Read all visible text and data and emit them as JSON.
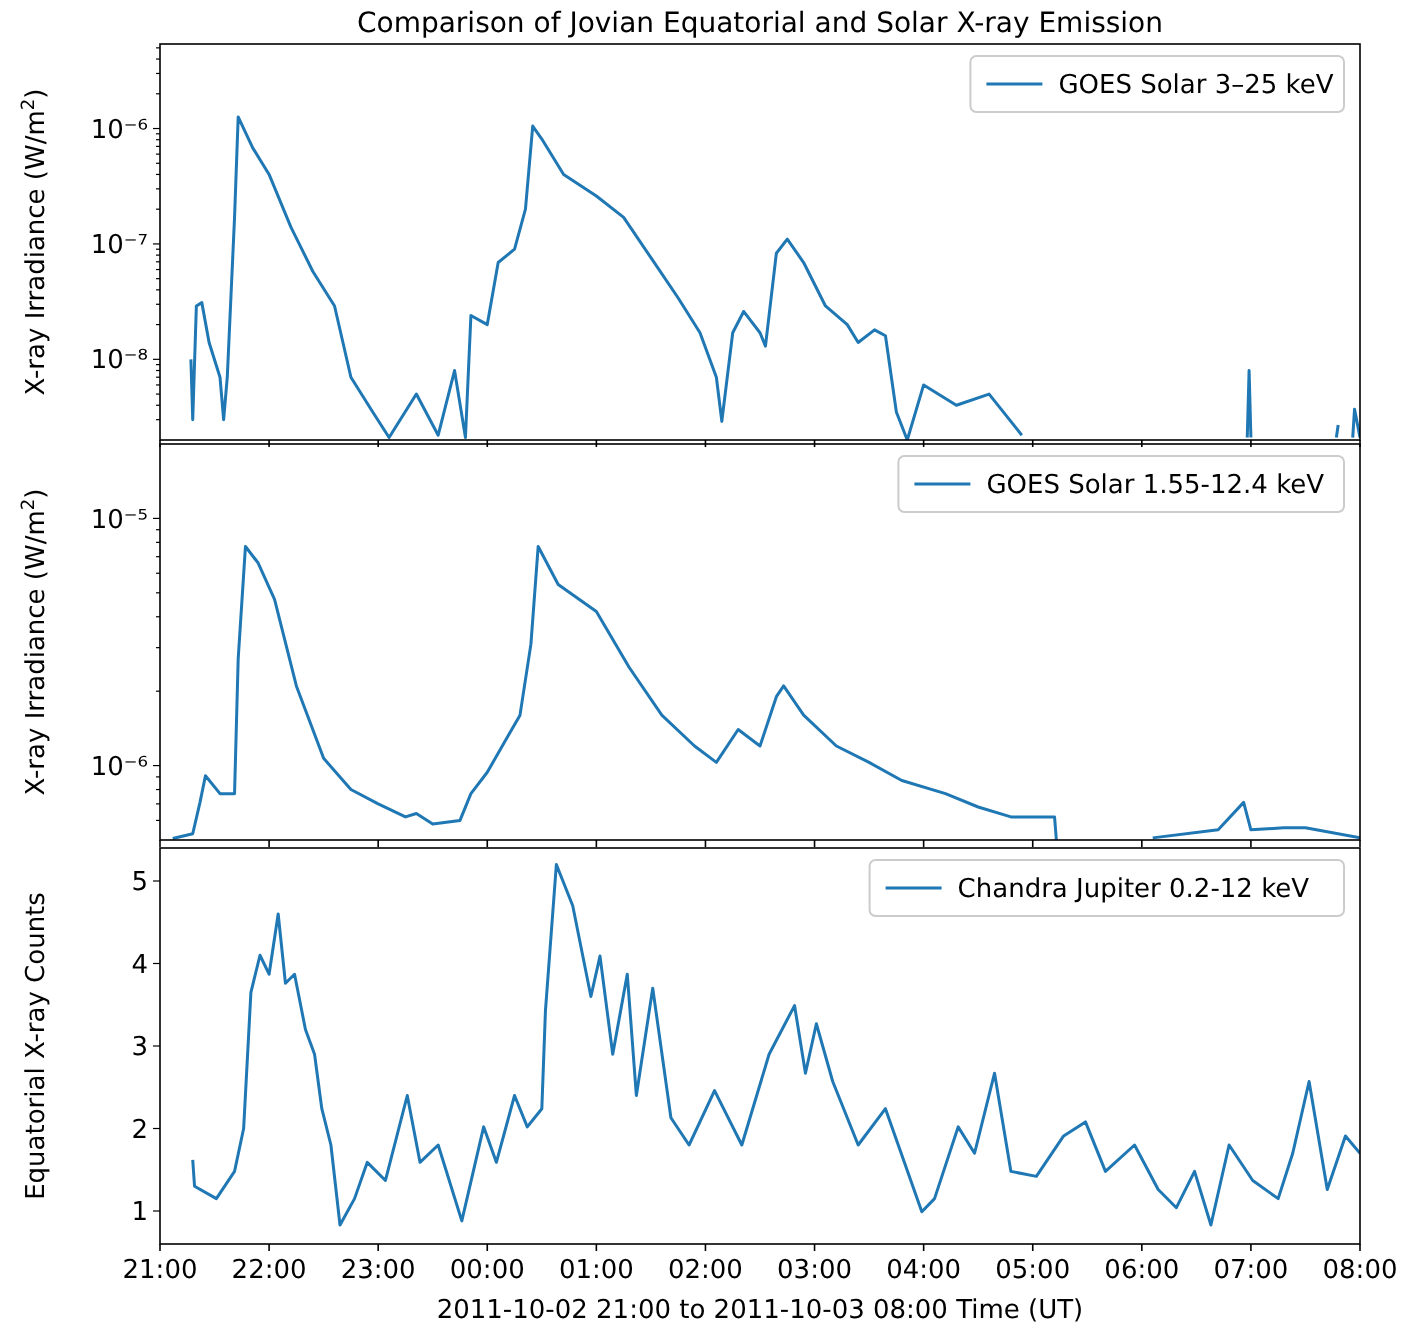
{
  "chart_data": [
    {
      "type": "line",
      "title": "Comparison of Jovian Equatorial and Solar X-ray Emission",
      "ylabel": "X-ray Irradiance (W/m$^{2}$)",
      "log": "y",
      "legend": "top right",
      "tick_labels": "y",
      "xlim": [
        "2011-10-02T21:00",
        "2011-10-03T08:00"
      ],
      "xticks": [
        {
          "value": "2011-10-02T21:00",
          "label": null
        },
        {
          "value": "2011-10-02T22:00",
          "label": null
        },
        {
          "value": "2011-10-02T23:00",
          "label": null
        },
        {
          "value": "2011-10-03T00:00",
          "label": null
        },
        {
          "value": "2011-10-03T01:00",
          "label": null
        },
        {
          "value": "2011-10-03T02:00",
          "label": null
        },
        {
          "value": "2011-10-03T03:00",
          "label": null
        },
        {
          "value": "2011-10-03T04:00",
          "label": null
        },
        {
          "value": "2011-10-03T05:00",
          "label": null
        },
        {
          "value": "2011-10-03T06:00",
          "label": null
        },
        {
          "value": "2011-10-03T07:00",
          "label": null
        },
        {
          "value": "2011-10-03T08:00",
          "label": null
        }
      ],
      "ylim": [
        2e-09,
        5.4e-06
      ],
      "yticks": [
        {
          "value": 1e-08,
          "label": "10⁻⁸"
        },
        {
          "value": 1e-07,
          "label": "10⁻⁷"
        },
        {
          "value": 1e-06,
          "label": "10⁻⁶"
        },
        {
          "value": 3e-09,
          "label": null
        },
        {
          "value": 4e-09,
          "label": null
        },
        {
          "value": 5e-09,
          "label": null
        },
        {
          "value": 6e-09,
          "label": null
        },
        {
          "value": 7e-09,
          "label": null
        },
        {
          "value": 8e-09,
          "label": null
        },
        {
          "value": 9e-09,
          "label": null
        },
        {
          "value": 2e-08,
          "label": null
        },
        {
          "value": 3e-08,
          "label": null
        },
        {
          "value": 4e-08,
          "label": null
        },
        {
          "value": 5e-08,
          "label": null
        },
        {
          "value": 6e-08,
          "label": null
        },
        {
          "value": 7e-08,
          "label": null
        },
        {
          "value": 8e-08,
          "label": null
        },
        {
          "value": 9e-08,
          "label": null
        },
        {
          "value": 2e-07,
          "label": null
        },
        {
          "value": 3e-07,
          "label": null
        },
        {
          "value": 4e-07,
          "label": null
        },
        {
          "value": 5e-07,
          "label": null
        },
        {
          "value": 6e-07,
          "label": null
        },
        {
          "value": 7e-07,
          "label": null
        },
        {
          "value": 8e-07,
          "label": null
        },
        {
          "value": 9e-07,
          "label": null
        },
        {
          "value": 2e-06,
          "label": null
        },
        {
          "value": 3e-06,
          "label": null
        },
        {
          "value": 4e-06,
          "label": null
        },
        {
          "value": 5e-06,
          "label": null
        }
      ],
      "series": [
        {
          "name": "GOES Solar 3–25 keV",
          "color": "#1f77b4",
          "x": [
            "2011-10-02T21:17",
            "2011-10-02T21:18",
            "2011-10-02T21:20",
            "2011-10-02T21:23",
            "2011-10-02T21:27",
            "2011-10-02T21:33",
            "2011-10-02T21:35",
            "2011-10-02T21:37",
            "2011-10-02T21:41",
            "2011-10-02T21:43",
            "2011-10-02T21:51",
            "2011-10-02T22:00",
            "2011-10-02T22:12",
            "2011-10-02T22:24",
            "2011-10-02T22:36",
            "2011-10-02T22:45",
            "2011-10-02T22:57",
            "2011-10-02T23:06",
            "2011-10-02T23:21",
            "2011-10-02T23:33",
            "2011-10-02T23:42",
            "2011-10-02T23:48",
            "2011-10-02T23:51",
            "2011-10-03T00:00",
            "2011-10-03T00:06",
            "2011-10-03T00:15",
            "2011-10-03T00:21",
            "2011-10-03T00:25",
            "2011-10-03T00:30",
            "2011-10-03T00:42",
            "2011-10-03T01:00",
            "2011-10-03T01:15",
            "2011-10-03T01:30",
            "2011-10-03T01:45",
            "2011-10-03T01:57",
            "2011-10-03T02:06",
            "2011-10-03T02:09",
            "2011-10-03T02:15",
            "2011-10-03T02:21",
            "2011-10-03T02:30",
            "2011-10-03T02:33",
            "2011-10-03T02:39",
            "2011-10-03T02:45",
            "2011-10-03T02:54",
            "2011-10-03T03:06",
            "2011-10-03T03:18",
            "2011-10-03T03:24",
            "2011-10-03T03:33",
            "2011-10-03T03:39",
            "2011-10-03T03:45",
            "2011-10-03T03:51",
            "2011-10-03T04:00",
            "2011-10-03T04:18",
            "2011-10-03T04:36",
            "2011-10-03T04:54",
            "2011-10-03T05:00",
            "2011-10-03T06:58",
            "2011-10-03T06:59",
            "2011-10-03T07:00",
            "2011-10-03T07:10",
            "2011-10-03T07:47",
            "2011-10-03T07:48",
            "2011-10-03T07:50",
            "2011-10-03T07:56",
            "2011-10-03T07:57",
            "2011-10-03T08:00"
          ],
          "values": [
            1e-08,
            3e-09,
            2.9e-08,
            3.1e-08,
            1.4e-08,
            7e-09,
            3e-09,
            7e-09,
            1.7e-07,
            1.26e-06,
            6.8e-07,
            4e-07,
            1.4e-07,
            5.8e-08,
            2.9e-08,
            7e-09,
            3.5e-09,
            2.1e-09,
            5e-09,
            2.2e-09,
            8e-09,
            2.1e-09,
            2.4e-08,
            2e-08,
            6.9e-08,
            9e-08,
            2e-07,
            1.05e-06,
            8.1e-07,
            4e-07,
            2.6e-07,
            1.7e-07,
            7.6e-08,
            3.4e-08,
            1.7e-08,
            7e-09,
            2.9e-09,
            1.7e-08,
            2.6e-08,
            1.7e-08,
            1.3e-08,
            8.3e-08,
            1.1e-07,
            6.9e-08,
            2.9e-08,
            2e-08,
            1.4e-08,
            1.8e-08,
            1.6e-08,
            3.5e-09,
            2e-09,
            6e-09,
            4e-09,
            5e-09,
            2.2e-09,
            null,
            2.1e-09,
            8e-09,
            2.1e-09,
            null,
            2.1e-09,
            2.7e-09,
            null,
            2.1e-09,
            3.7e-09,
            2.1e-09
          ]
        }
      ]
    },
    {
      "type": "line",
      "ylabel": "X-ray Irradiance (W/m$^{2}$)",
      "log": "y",
      "legend": "top right",
      "tick_labels": "y",
      "xlim": [
        "2011-10-02T21:00",
        "2011-10-03T08:00"
      ],
      "xticks": [
        {
          "value": "2011-10-02T21:00",
          "label": null
        },
        {
          "value": "2011-10-02T22:00",
          "label": null
        },
        {
          "value": "2011-10-02T23:00",
          "label": null
        },
        {
          "value": "2011-10-03T00:00",
          "label": null
        },
        {
          "value": "2011-10-03T01:00",
          "label": null
        },
        {
          "value": "2011-10-03T02:00",
          "label": null
        },
        {
          "value": "2011-10-03T03:00",
          "label": null
        },
        {
          "value": "2011-10-03T04:00",
          "label": null
        },
        {
          "value": "2011-10-03T05:00",
          "label": null
        },
        {
          "value": "2011-10-03T06:00",
          "label": null
        },
        {
          "value": "2011-10-03T07:00",
          "label": null
        },
        {
          "value": "2011-10-03T08:00",
          "label": null
        }
      ],
      "ylim": [
        5e-07,
        2e-05
      ],
      "yticks": [
        {
          "value": 1e-06,
          "label": "10⁻⁶"
        },
        {
          "value": 1e-05,
          "label": "10⁻⁵"
        },
        {
          "value": 6e-07,
          "label": null
        },
        {
          "value": 7e-07,
          "label": null
        },
        {
          "value": 8e-07,
          "label": null
        },
        {
          "value": 9e-07,
          "label": null
        },
        {
          "value": 2e-06,
          "label": null
        },
        {
          "value": 3e-06,
          "label": null
        },
        {
          "value": 4e-06,
          "label": null
        },
        {
          "value": 5e-06,
          "label": null
        },
        {
          "value": 6e-06,
          "label": null
        },
        {
          "value": 7e-06,
          "label": null
        },
        {
          "value": 8e-06,
          "label": null
        },
        {
          "value": 9e-06,
          "label": null
        }
      ],
      "series": [
        {
          "name": "GOES Solar 1.55-12.4 keV",
          "color": "#1f77b4",
          "x": [
            "2011-10-02T21:07",
            "2011-10-02T21:18",
            "2011-10-02T21:22",
            "2011-10-02T21:25",
            "2011-10-02T21:33",
            "2011-10-02T21:41",
            "2011-10-02T21:43",
            "2011-10-02T21:47",
            "2011-10-02T21:54",
            "2011-10-02T22:03",
            "2011-10-02T22:15",
            "2011-10-02T22:30",
            "2011-10-02T22:45",
            "2011-10-02T23:00",
            "2011-10-02T23:15",
            "2011-10-02T23:21",
            "2011-10-02T23:30",
            "2011-10-02T23:45",
            "2011-10-02T23:51",
            "2011-10-03T00:00",
            "2011-10-03T00:18",
            "2011-10-03T00:24",
            "2011-10-03T00:28",
            "2011-10-03T00:39",
            "2011-10-03T01:00",
            "2011-10-03T01:18",
            "2011-10-03T01:36",
            "2011-10-03T01:54",
            "2011-10-03T02:06",
            "2011-10-03T02:18",
            "2011-10-03T02:30",
            "2011-10-03T02:39",
            "2011-10-03T02:43",
            "2011-10-03T02:54",
            "2011-10-03T03:12",
            "2011-10-03T03:30",
            "2011-10-03T03:48",
            "2011-10-03T04:12",
            "2011-10-03T04:30",
            "2011-10-03T04:48",
            "2011-10-03T05:12",
            "2011-10-03T05:13",
            "2011-10-03T05:30",
            "2011-10-03T06:06",
            "2011-10-03T06:42",
            "2011-10-03T06:56",
            "2011-10-03T07:00",
            "2011-10-03T07:18",
            "2011-10-03T07:30",
            "2011-10-03T08:00"
          ],
          "values": [
            5.07e-07,
            5.3e-07,
            7.1e-07,
            9.1e-07,
            7.7e-07,
            7.7e-07,
            2.7e-06,
            7.7e-06,
            6.6e-06,
            4.7e-06,
            2.1e-06,
            1.07e-06,
            8e-07,
            7e-07,
            6.2e-07,
            6.4e-07,
            5.8e-07,
            6e-07,
            7.7e-07,
            9.4e-07,
            1.6e-06,
            3.1e-06,
            7.7e-06,
            5.4e-06,
            4.2e-06,
            2.5e-06,
            1.6e-06,
            1.2e-06,
            1.03e-06,
            1.4e-06,
            1.2e-06,
            1.9e-06,
            2.1e-06,
            1.6e-06,
            1.2e-06,
            1.03e-06,
            8.7e-07,
            7.7e-07,
            6.8e-07,
            6.2e-07,
            6.2e-07,
            5e-07,
            null,
            5.1e-07,
            5.5e-07,
            7.1e-07,
            5.5e-07,
            5.6e-07,
            5.6e-07,
            5.1e-07
          ]
        }
      ]
    },
    {
      "type": "line",
      "ylabel": "Equatorial X-ray Counts",
      "xlabel": "2011-10-02 21:00 to 2011-10-03 08:00 Time (UT)",
      "legend": "top right",
      "xlim": [
        "2011-10-02T21:00",
        "2011-10-03T08:00"
      ],
      "xticks": [
        {
          "value": "2011-10-02T21:00",
          "label": "21:00"
        },
        {
          "value": "2011-10-02T22:00",
          "label": "22:00"
        },
        {
          "value": "2011-10-02T23:00",
          "label": "23:00"
        },
        {
          "value": "2011-10-03T00:00",
          "label": "00:00"
        },
        {
          "value": "2011-10-03T01:00",
          "label": "01:00"
        },
        {
          "value": "2011-10-03T02:00",
          "label": "02:00"
        },
        {
          "value": "2011-10-03T03:00",
          "label": "03:00"
        },
        {
          "value": "2011-10-03T04:00",
          "label": "04:00"
        },
        {
          "value": "2011-10-03T05:00",
          "label": "05:00"
        },
        {
          "value": "2011-10-03T06:00",
          "label": "06:00"
        },
        {
          "value": "2011-10-03T07:00",
          "label": "07:00"
        },
        {
          "value": "2011-10-03T08:00",
          "label": "08:00"
        }
      ],
      "ylim": [
        0.6,
        5.4
      ],
      "yticks": [
        1,
        2,
        3,
        4,
        5
      ],
      "series": [
        {
          "name": "Chandra Jupiter 0.2-12 keV",
          "color": "#1f77b4",
          "x": [
            "2011-10-02T21:18",
            "2011-10-02T21:19",
            "2011-10-02T21:31",
            "2011-10-02T21:41",
            "2011-10-02T21:46",
            "2011-10-02T21:50",
            "2011-10-02T21:55",
            "2011-10-02T22:00",
            "2011-10-02T22:05",
            "2011-10-02T22:09",
            "2011-10-02T22:14",
            "2011-10-02T22:20",
            "2011-10-02T22:25",
            "2011-10-02T22:29",
            "2011-10-02T22:34",
            "2011-10-02T22:39",
            "2011-10-02T22:47",
            "2011-10-02T22:54",
            "2011-10-02T23:04",
            "2011-10-02T23:16",
            "2011-10-02T23:23",
            "2011-10-02T23:33",
            "2011-10-02T23:46",
            "2011-10-02T23:58",
            "2011-10-03T00:05",
            "2011-10-03T00:15",
            "2011-10-03T00:22",
            "2011-10-03T00:30",
            "2011-10-03T00:32",
            "2011-10-03T00:38",
            "2011-10-03T00:47",
            "2011-10-03T00:57",
            "2011-10-03T01:02",
            "2011-10-03T01:09",
            "2011-10-03T01:17",
            "2011-10-03T01:22",
            "2011-10-03T01:31",
            "2011-10-03T01:41",
            "2011-10-03T01:51",
            "2011-10-03T02:05",
            "2011-10-03T02:20",
            "2011-10-03T02:35",
            "2011-10-03T02:49",
            "2011-10-03T02:55",
            "2011-10-03T03:01",
            "2011-10-03T03:10",
            "2011-10-03T03:24",
            "2011-10-03T03:39",
            "2011-10-03T03:59",
            "2011-10-03T04:06",
            "2011-10-03T04:19",
            "2011-10-03T04:28",
            "2011-10-03T04:39",
            "2011-10-03T04:48",
            "2011-10-03T05:02",
            "2011-10-03T05:17",
            "2011-10-03T05:29",
            "2011-10-03T05:40",
            "2011-10-03T05:56",
            "2011-10-03T06:09",
            "2011-10-03T06:19",
            "2011-10-03T06:29",
            "2011-10-03T06:38",
            "2011-10-03T06:48",
            "2011-10-03T07:01",
            "2011-10-03T07:15",
            "2011-10-03T07:23",
            "2011-10-03T07:32",
            "2011-10-03T07:42",
            "2011-10-03T07:52",
            "2011-10-03T08:00"
          ],
          "values": [
            1.62,
            1.3,
            1.15,
            1.48,
            2.0,
            3.65,
            4.1,
            3.87,
            4.6,
            3.76,
            3.87,
            3.2,
            2.9,
            2.24,
            1.8,
            0.83,
            1.15,
            1.59,
            1.37,
            2.4,
            1.59,
            1.8,
            0.88,
            2.02,
            1.59,
            2.4,
            2.02,
            2.24,
            3.43,
            5.2,
            4.7,
            3.6,
            4.09,
            2.9,
            3.87,
            2.4,
            3.7,
            2.13,
            1.8,
            2.46,
            1.8,
            2.9,
            3.49,
            2.67,
            3.27,
            2.57,
            1.8,
            2.24,
            0.99,
            1.15,
            2.02,
            1.7,
            2.67,
            1.48,
            1.42,
            1.91,
            2.08,
            1.48,
            1.8,
            1.26,
            1.04,
            1.48,
            0.83,
            1.8,
            1.37,
            1.15,
            1.7,
            2.57,
            1.26,
            1.91,
            1.7
          ]
        }
      ]
    }
  ]
}
